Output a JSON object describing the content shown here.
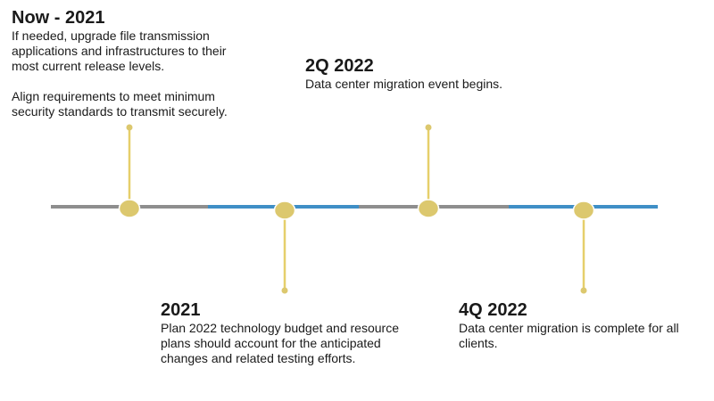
{
  "colors": {
    "gray": "#8e8e8e",
    "blue": "#3f8fc6",
    "node": "#dcc86e",
    "stem": "#e6cf6b"
  },
  "milestones": [
    {
      "title": "Now - 2021",
      "lines": [
        "If needed, upgrade file transmission",
        "applications and infrastructures to their",
        "most current release levels.",
        " ",
        "Align requirements to meet minimum",
        "security standards to transmit securely."
      ]
    },
    {
      "title": "2021",
      "lines": [
        "Plan 2022 technology budget and resource",
        "plans should account for the anticipated",
        "changes and related testing efforts."
      ]
    },
    {
      "title": "2Q 2022",
      "lines": [
        "Data center migration event begins."
      ]
    },
    {
      "title": "4Q 2022",
      "lines": [
        "Data center migration is complete for all",
        "clients."
      ]
    }
  ]
}
